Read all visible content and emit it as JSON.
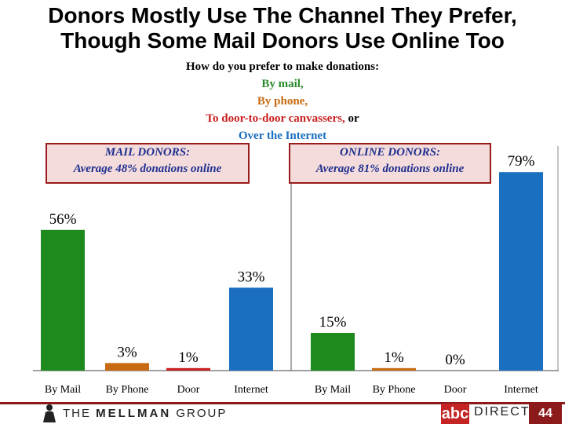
{
  "title_line1": "Donors Mostly Use The Channel They Prefer,",
  "title_line2": "Though Some Mail Donors Use Online Too",
  "question": {
    "line1": "How do you prefer to make donations:",
    "line2": "By mail,",
    "line3": "By phone,",
    "line4": "To door-to-door canvassers,",
    "line4_suffix": "or",
    "line5": "Over the Internet"
  },
  "mail_box": {
    "line1": "MAIL DONORS:",
    "line2": "Average 48% donations online"
  },
  "online_box": {
    "line1": "ONLINE DONORS:",
    "line2": "Average 81% donations online"
  },
  "chart_data": [
    {
      "type": "bar",
      "group": "MAIL DONORS",
      "categories": [
        "By Mail",
        "By Phone",
        "Door",
        "Internet"
      ],
      "values": [
        56,
        3,
        1,
        33
      ],
      "labels": [
        "56%",
        "3%",
        "1%",
        "33%"
      ],
      "colors": [
        "#1e8a1e",
        "#c86a12",
        "#c81e1e",
        "#1b6fc0"
      ],
      "ylim": [
        0,
        100
      ]
    },
    {
      "type": "bar",
      "group": "ONLINE DONORS",
      "categories": [
        "By Mail",
        "By Phone",
        "Door",
        "Internet"
      ],
      "values": [
        15,
        1,
        0,
        79
      ],
      "labels": [
        "15%",
        "1%",
        "0%",
        "79%"
      ],
      "colors": [
        "#1e8a1e",
        "#c86a12",
        "#c81e1e",
        "#1b6fc0"
      ],
      "ylim": [
        0,
        100
      ]
    }
  ],
  "footer": {
    "left_brand_the": "THE",
    "left_brand_name": "MELLMAN",
    "left_brand_group": "GROUP",
    "right_brand_abc": "abc",
    "right_brand_direct": "DIRECT",
    "page_number": "44"
  }
}
